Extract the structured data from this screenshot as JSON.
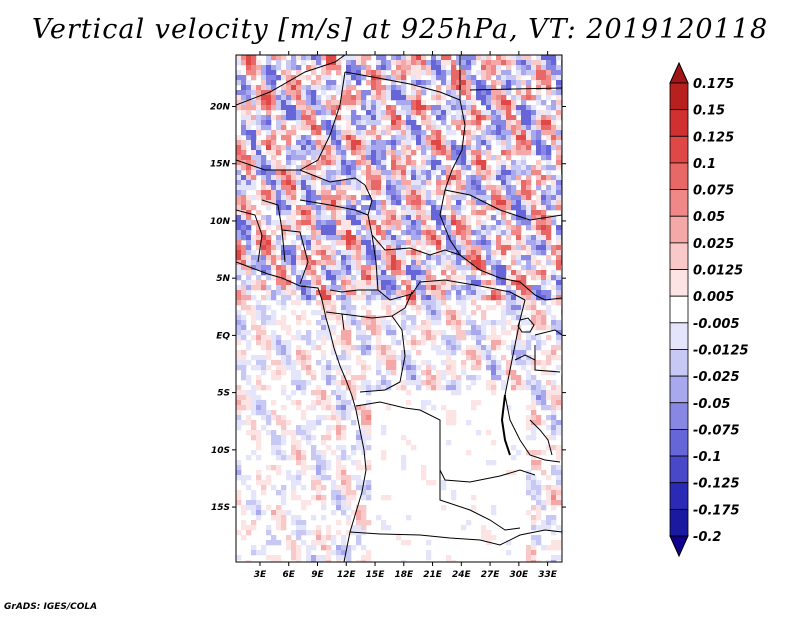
{
  "title": "Vertical velocity [m/s] at 925hPa, VT: 2019120118",
  "credit": "GrADS: IGES/COLA",
  "map": {
    "lat_labels": [
      "20N",
      "15N",
      "10N",
      "5N",
      "EQ",
      "5S",
      "10S",
      "15S"
    ],
    "lat_values": [
      20,
      15,
      10,
      5,
      0,
      -5,
      -10,
      -15
    ],
    "lon_labels": [
      "3E",
      "6E",
      "9E",
      "12E",
      "15E",
      "18E",
      "21E",
      "24E",
      "27E",
      "30E",
      "33E"
    ],
    "lon_values": [
      3,
      6,
      9,
      12,
      15,
      18,
      21,
      24,
      27,
      30,
      33
    ],
    "lat_range": [
      -19.8,
      24.5
    ],
    "lon_range": [
      0.5,
      34.5
    ],
    "field_variable": "vertical velocity",
    "units": "m/s",
    "level": "925hPa"
  },
  "colorbar": {
    "levels": [
      "0.175",
      "0.15",
      "0.125",
      "0.1",
      "0.075",
      "0.05",
      "0.025",
      "0.0125",
      "0.005",
      "-0.005",
      "-0.0125",
      "-0.025",
      "-0.05",
      "-0.075",
      "-0.1",
      "-0.125",
      "-0.175",
      "-0.2"
    ],
    "colors": [
      "#a01515",
      "#b82020",
      "#d03030",
      "#e04848",
      "#e86868",
      "#f08888",
      "#f5a8a8",
      "#f9c8c8",
      "#fde4e4",
      "#ffffff",
      "#e4e4fb",
      "#c8c8f5",
      "#a8a8ee",
      "#8888e4",
      "#6666d8",
      "#4848c8",
      "#2a2ab4",
      "#1a1aa0",
      "#100090"
    ]
  }
}
